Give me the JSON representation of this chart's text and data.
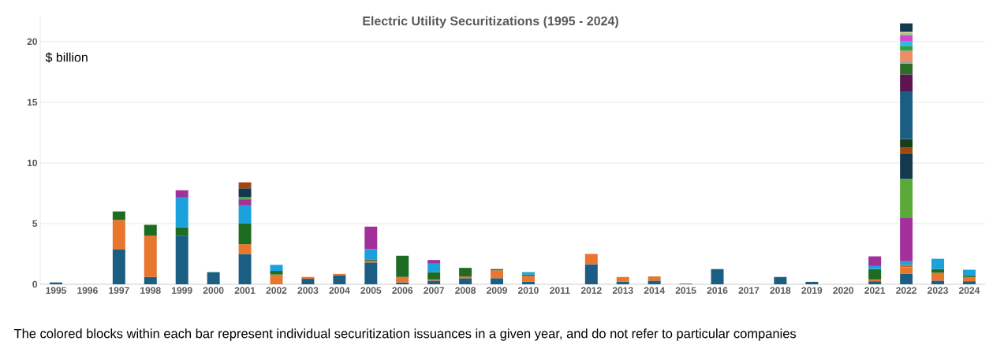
{
  "chart_data": {
    "type": "bar",
    "stacked": true,
    "title": "Electric Utility Securitizations (1995 - 2024)",
    "ylabel": "$ billion",
    "annotations": [
      "The colored blocks within each bar represent individual securitization issuances in a given year, and do not refer to particular companies"
    ],
    "categories": [
      "1995",
      "1996",
      "1997",
      "1998",
      "1999",
      "2000",
      "2001",
      "2002",
      "2003",
      "2004",
      "2005",
      "2006",
      "2007",
      "2008",
      "2009",
      "2010",
      "2011",
      "2012",
      "2013",
      "2014",
      "2015",
      "2016",
      "2017",
      "2018",
      "2019",
      "2020",
      "2021",
      "2022",
      "2023",
      "2024"
    ],
    "ylim": [
      0,
      22
    ],
    "yticks": [
      0,
      5,
      10,
      15,
      20
    ],
    "grid": "y",
    "series": [
      {
        "values": [
          0.15,
          null,
          2.9,
          0.6,
          4.0,
          1.0,
          2.5,
          0.8,
          0.45,
          0.75,
          1.8,
          0.15,
          0.3,
          0.5,
          0.5,
          0.2,
          null,
          1.65,
          0.2,
          0.3,
          0.05,
          1.25,
          null,
          0.6,
          0.2,
          null,
          0.25,
          0.85,
          0.3,
          0.25
        ],
        "colors": [
          "#1b5e83",
          null,
          "#1b5e83",
          "#1b5e83",
          "#1b5e83",
          "#1b5e83",
          "#1b5e83",
          "#e8762d",
          "#1b5e83",
          "#1b5e83",
          "#1b5e83",
          "#1b5e83",
          "#1b5e83",
          "#1b5e83",
          "#1b5e83",
          "#1b5e83",
          null,
          "#1b5e83",
          "#1b5e83",
          "#1b5e83",
          "#1b5e83",
          "#1b5e83",
          null,
          "#1b5e83",
          "#1b5e83",
          null,
          "#1b5e83",
          "#1b5e83",
          "#1b5e83",
          "#1b5e83"
        ]
      },
      {
        "values": [
          null,
          null,
          2.4,
          3.4,
          0.7,
          null,
          0.8,
          0.3,
          0.15,
          0.1,
          0.15,
          0.45,
          0.1,
          0.15,
          0.65,
          0.5,
          null,
          0.85,
          0.4,
          0.35,
          null,
          null,
          null,
          null,
          null,
          null,
          0.15,
          0.55,
          0.65,
          0.35
        ],
        "colors": [
          null,
          null,
          "#e8762d",
          "#e8762d",
          "#1e6b22",
          null,
          "#e8762d",
          "#1e6b22",
          "#e8762d",
          "#e8762d",
          "#e8762d",
          "#e8762d",
          "#e8762d",
          "#e8762d",
          "#e8762d",
          "#e8762d",
          null,
          "#e8762d",
          "#e8762d",
          "#e8762d",
          null,
          null,
          null,
          null,
          null,
          null,
          "#e8762d",
          "#e8762d",
          "#e8762d",
          "#e8762d"
        ]
      },
      {
        "values": [
          null,
          null,
          0.7,
          0.9,
          2.45,
          null,
          1.7,
          0.5,
          null,
          null,
          0.1,
          1.75,
          0.6,
          0.7,
          0.1,
          0.1,
          null,
          null,
          null,
          null,
          null,
          null,
          null,
          null,
          null,
          null,
          0.85,
          0.2,
          0.3,
          0.15
        ],
        "colors": [
          null,
          null,
          "#1e6b22",
          "#1e6b22",
          "#1ba1db",
          null,
          "#1e6b22",
          "#1ba1db",
          null,
          null,
          "#1e6b22",
          "#1e6b22",
          "#1e6b22",
          "#1e6b22",
          "#1e6b22",
          "#1e6b22",
          null,
          null,
          null,
          null,
          null,
          null,
          null,
          null,
          null,
          null,
          "#1e6b22",
          "#d0661f",
          "#1e6b22",
          "#1e6b22"
        ]
      },
      {
        "values": [
          null,
          null,
          null,
          null,
          0.6,
          null,
          1.5,
          null,
          null,
          null,
          0.85,
          null,
          0.7,
          null,
          null,
          0.2,
          null,
          null,
          null,
          null,
          null,
          null,
          null,
          null,
          null,
          null,
          0.25,
          0.3,
          0.85,
          0.45
        ],
        "colors": [
          null,
          null,
          null,
          null,
          "#a1309b",
          null,
          "#1ba1db",
          null,
          null,
          null,
          "#1ba1db",
          null,
          "#1ba1db",
          null,
          null,
          "#1ba1db",
          null,
          null,
          null,
          null,
          null,
          null,
          null,
          null,
          null,
          null,
          "#1ba1db",
          "#1ba1db",
          "#1ba1db",
          "#1ba1db"
        ]
      },
      {
        "values": [
          null,
          null,
          null,
          null,
          null,
          null,
          0.5,
          null,
          null,
          null,
          1.85,
          null,
          0.3,
          null,
          null,
          null,
          null,
          null,
          null,
          null,
          null,
          null,
          null,
          null,
          null,
          null,
          0.8,
          3.6,
          null,
          null
        ],
        "colors": [
          null,
          null,
          null,
          null,
          null,
          null,
          "#a1309b",
          null,
          null,
          null,
          "#a1309b",
          null,
          "#a1309b",
          null,
          null,
          null,
          null,
          null,
          null,
          null,
          null,
          null,
          null,
          null,
          null,
          null,
          "#a1309b",
          "#a1309b",
          null,
          null
        ]
      },
      {
        "values": [
          null,
          null,
          null,
          null,
          null,
          null,
          0.2,
          null,
          null,
          null,
          null,
          null,
          null,
          null,
          null,
          null,
          null,
          null,
          null,
          null,
          null,
          null,
          null,
          null,
          null,
          null,
          null,
          3.2,
          null,
          null
        ],
        "colors": [
          null,
          null,
          null,
          null,
          null,
          null,
          "#5aaa3a",
          null,
          null,
          null,
          null,
          null,
          null,
          null,
          null,
          null,
          null,
          null,
          null,
          null,
          null,
          null,
          null,
          null,
          null,
          null,
          null,
          "#5aaa3a",
          null,
          null
        ]
      },
      {
        "values": [
          null,
          null,
          null,
          null,
          null,
          null,
          0.7,
          null,
          null,
          null,
          null,
          null,
          null,
          null,
          null,
          null,
          null,
          null,
          null,
          null,
          null,
          null,
          null,
          null,
          null,
          null,
          null,
          2.1,
          null,
          null
        ],
        "colors": [
          null,
          null,
          null,
          null,
          null,
          null,
          "#13394f",
          null,
          null,
          null,
          null,
          null,
          null,
          null,
          null,
          null,
          null,
          null,
          null,
          null,
          null,
          null,
          null,
          null,
          null,
          null,
          null,
          "#13394f",
          null,
          null
        ]
      },
      {
        "values": [
          null,
          null,
          null,
          null,
          null,
          null,
          0.5,
          null,
          null,
          null,
          null,
          null,
          null,
          null,
          null,
          null,
          null,
          null,
          null,
          null,
          null,
          null,
          null,
          null,
          null,
          null,
          null,
          0.45,
          null,
          null
        ],
        "colors": [
          null,
          null,
          null,
          null,
          null,
          null,
          "#a3460f",
          null,
          null,
          null,
          null,
          null,
          null,
          null,
          null,
          null,
          null,
          null,
          null,
          null,
          null,
          null,
          null,
          null,
          null,
          null,
          null,
          "#a3460f",
          null,
          null
        ]
      },
      {
        "values": [
          null,
          null,
          null,
          null,
          null,
          null,
          null,
          null,
          null,
          null,
          null,
          null,
          null,
          null,
          null,
          null,
          null,
          null,
          null,
          null,
          null,
          null,
          null,
          null,
          null,
          null,
          null,
          0.7,
          null,
          null
        ],
        "color": "#173f17"
      },
      {
        "values": [
          null,
          null,
          null,
          null,
          null,
          null,
          null,
          null,
          null,
          null,
          null,
          null,
          null,
          null,
          null,
          null,
          null,
          null,
          null,
          null,
          null,
          null,
          null,
          null,
          null,
          null,
          null,
          3.95,
          null,
          null
        ],
        "color": "#1b5e83"
      },
      {
        "values": [
          null,
          null,
          null,
          null,
          null,
          null,
          null,
          null,
          null,
          null,
          null,
          null,
          null,
          null,
          null,
          null,
          null,
          null,
          null,
          null,
          null,
          null,
          null,
          null,
          null,
          null,
          null,
          1.4,
          null,
          null
        ],
        "color": "#5b1551"
      },
      {
        "values": [
          null,
          null,
          null,
          null,
          null,
          null,
          null,
          null,
          null,
          null,
          null,
          null,
          null,
          null,
          null,
          null,
          null,
          null,
          null,
          null,
          null,
          null,
          null,
          null,
          null,
          null,
          null,
          0.9,
          null,
          null
        ],
        "color": "#2f6b2a"
      },
      {
        "values": [
          null,
          null,
          null,
          null,
          null,
          null,
          null,
          null,
          null,
          null,
          null,
          null,
          null,
          null,
          null,
          null,
          null,
          null,
          null,
          null,
          null,
          null,
          null,
          null,
          null,
          null,
          null,
          0.1,
          null,
          null
        ],
        "color": "#8fa9b0"
      },
      {
        "values": [
          null,
          null,
          null,
          null,
          null,
          null,
          null,
          null,
          null,
          null,
          null,
          null,
          null,
          null,
          null,
          null,
          null,
          null,
          null,
          null,
          null,
          null,
          null,
          null,
          null,
          null,
          null,
          0.95,
          null,
          null
        ],
        "color": "#ee8c62"
      },
      {
        "values": [
          null,
          null,
          null,
          null,
          null,
          null,
          null,
          null,
          null,
          null,
          null,
          null,
          null,
          null,
          null,
          null,
          null,
          null,
          null,
          null,
          null,
          null,
          null,
          null,
          null,
          null,
          null,
          0.4,
          null,
          null
        ],
        "color": "#2ba34a"
      },
      {
        "values": [
          null,
          null,
          null,
          null,
          null,
          null,
          null,
          null,
          null,
          null,
          null,
          null,
          null,
          null,
          null,
          null,
          null,
          null,
          null,
          null,
          null,
          null,
          null,
          null,
          null,
          null,
          null,
          0.4,
          null,
          null
        ],
        "color": "#33b8e8"
      },
      {
        "values": [
          null,
          null,
          null,
          null,
          null,
          null,
          null,
          null,
          null,
          null,
          null,
          null,
          null,
          null,
          null,
          null,
          null,
          null,
          null,
          null,
          null,
          null,
          null,
          null,
          null,
          null,
          null,
          0.5,
          null,
          null
        ],
        "color": "#d04ad0"
      },
      {
        "values": [
          null,
          null,
          null,
          null,
          null,
          null,
          null,
          null,
          null,
          null,
          null,
          null,
          null,
          null,
          null,
          null,
          null,
          null,
          null,
          null,
          null,
          null,
          null,
          null,
          null,
          null,
          null,
          0.15,
          null,
          null
        ],
        "color": "#9cd07a"
      },
      {
        "values": [
          null,
          null,
          null,
          null,
          null,
          null,
          null,
          null,
          null,
          null,
          null,
          null,
          null,
          null,
          null,
          null,
          null,
          null,
          null,
          null,
          null,
          null,
          null,
          null,
          null,
          null,
          null,
          0.1,
          null,
          null
        ],
        "color": "#d8dca0"
      },
      {
        "values": [
          null,
          null,
          null,
          null,
          null,
          null,
          null,
          null,
          null,
          null,
          null,
          null,
          null,
          null,
          null,
          null,
          null,
          null,
          null,
          null,
          null,
          null,
          null,
          null,
          null,
          null,
          null,
          0.7,
          null,
          null
        ],
        "color": "#13394f"
      }
    ]
  }
}
